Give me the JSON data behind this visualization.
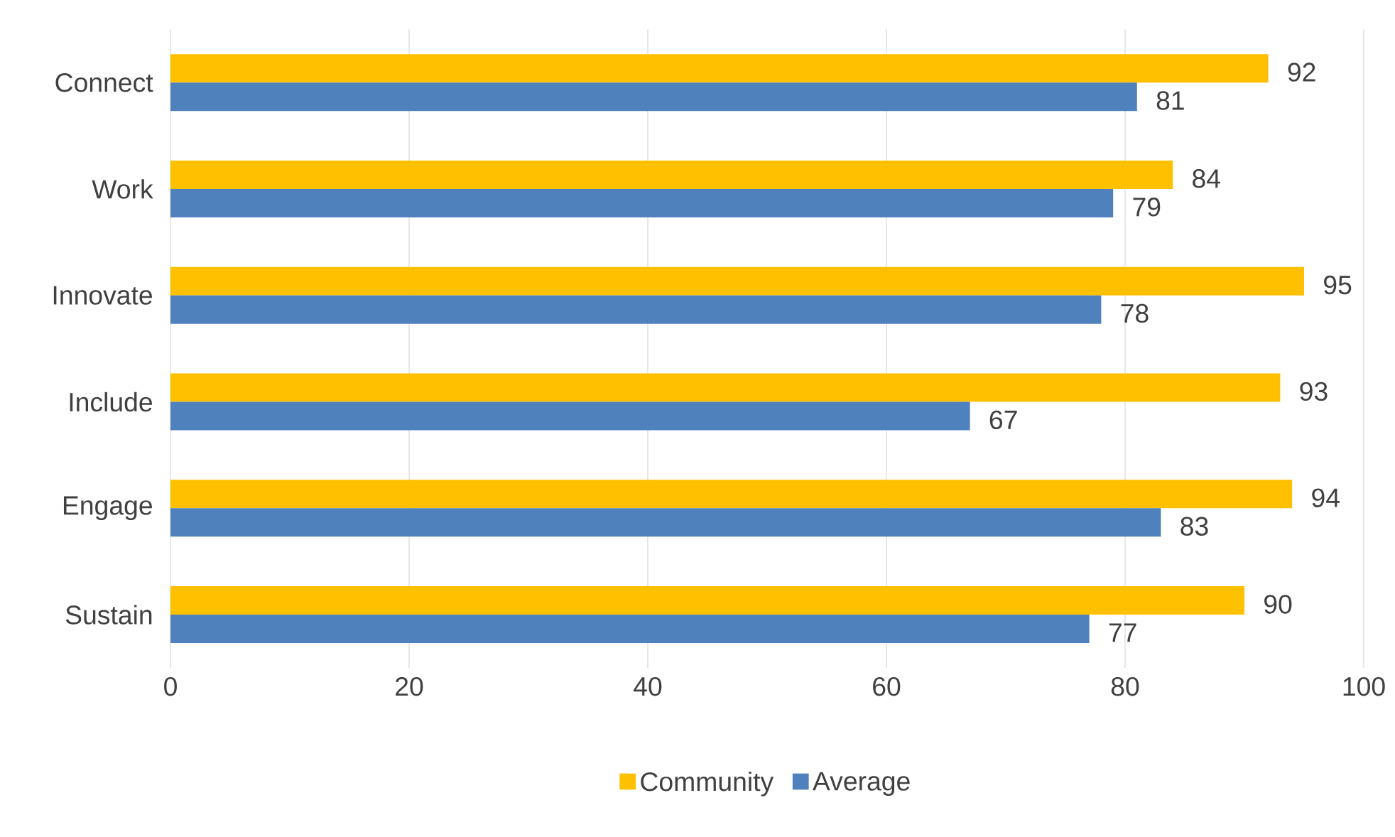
{
  "chart_data": {
    "type": "bar",
    "orientation": "horizontal",
    "categories": [
      "Connect",
      "Work",
      "Innovate",
      "Include",
      "Engage",
      "Sustain"
    ],
    "series": [
      {
        "name": "Community",
        "color": "#ffc000",
        "values": [
          92,
          84,
          95,
          93,
          94,
          90
        ]
      },
      {
        "name": "Average",
        "color": "#4f81bd",
        "values": [
          81,
          79,
          78,
          67,
          83,
          77
        ]
      }
    ],
    "xlim": [
      0,
      100
    ],
    "xticks": [
      0,
      20,
      40,
      60,
      80,
      100
    ],
    "grid": "x",
    "legend": "bottom",
    "data_labels": true
  }
}
